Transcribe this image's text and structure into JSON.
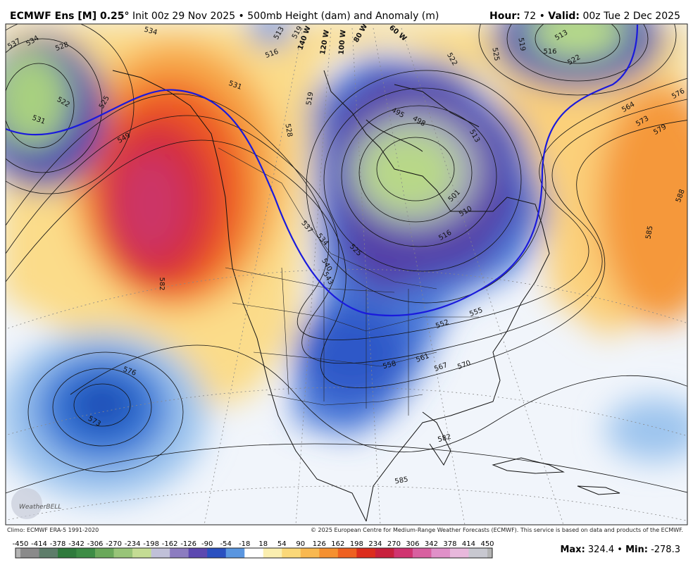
{
  "header": {
    "title": "ECMWF Ens [M] 0.25°",
    "subtitle": "Init 00z 29 Nov 2025 • 500mb Height (dam) and Anomaly (m)",
    "hour_label": "Hour:",
    "hour": "72",
    "separator": "•",
    "valid_label": "Valid:",
    "valid": "00z Tue 2 Dec 2025"
  },
  "map": {
    "contour_labels": [
      537,
      534,
      528,
      522,
      531,
      525,
      534,
      549,
      582,
      576,
      573,
      531,
      528,
      519,
      516,
      513,
      519,
      537,
      534,
      540,
      543,
      525,
      495,
      498,
      513,
      501,
      510,
      516,
      555,
      552,
      558,
      561,
      567,
      570,
      582,
      585,
      513,
      516,
      522,
      519,
      522,
      525,
      564,
      573,
      579,
      576,
      588,
      585
    ],
    "longitude_labels": [
      "140 W",
      "120 W",
      "100 W",
      "80 W",
      "60 W"
    ],
    "logo": "WeatherBELL"
  },
  "footer": {
    "climo": "Climo: ECMWF ERA-5 1991-2020",
    "copyright": "© 2025 European Centre for Medium-Range Weather Forecasts (ECMWF). This service is based on data and products of the ECMWF."
  },
  "colorbar": {
    "labels": [
      -450,
      -414,
      -378,
      -342,
      -306,
      -270,
      -234,
      -198,
      -162,
      -126,
      -90,
      -54,
      -18,
      18,
      54,
      90,
      126,
      162,
      198,
      234,
      270,
      306,
      342,
      378,
      414,
      450
    ],
    "colors": [
      "#b4b4b4",
      "#8a8a8a",
      "#5e7d6a",
      "#2f7a3c",
      "#3d8c45",
      "#6aa85a",
      "#98c478",
      "#c4dc94",
      "#c0c0d8",
      "#8c7cc0",
      "#5c48b0",
      "#2a50c0",
      "#5a96e0",
      "#ffffff",
      "#fbefb0",
      "#fbd878",
      "#f9b850",
      "#f59030",
      "#ee6020",
      "#dc2c1c",
      "#c8203c",
      "#d03470",
      "#d860a0",
      "#e090c8",
      "#e8b8dc",
      "#c8c8d0",
      "#b4b4b4"
    ]
  },
  "stats": {
    "max_label": "Max:",
    "max": 324.4,
    "min_label": "Min:",
    "min": -278.3
  }
}
